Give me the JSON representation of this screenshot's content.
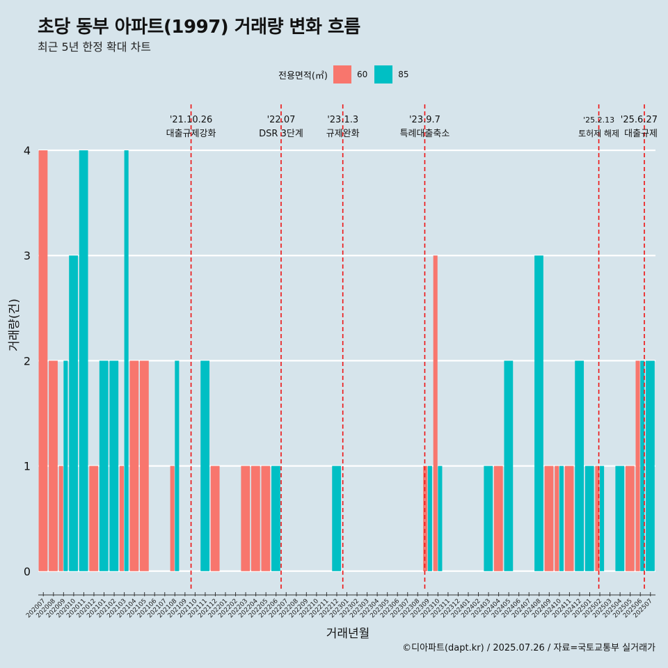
{
  "title": "초당 동부 아파트(1997) 거래량 변화 흐름",
  "subtitle": "최근 5년 한정 확대 차트",
  "legend": {
    "title": "전용면적(㎡)"
  },
  "caption": "©디아파트(dapt.kr) / 2025.07.26 / 자료=국토교통부 실거래가",
  "chart_data": {
    "type": "bar",
    "title": "초당 동부 아파트(1997) 거래량 변화 흐름",
    "xlabel": "거래년월",
    "ylabel": "거래량(건)",
    "ylim": [
      -0.18,
      4.45
    ],
    "yticks": [
      0,
      1,
      2,
      3,
      4
    ],
    "categories": [
      "202007",
      "202008",
      "202009",
      "202010",
      "202011",
      "202012",
      "202101",
      "202102",
      "202103",
      "202104",
      "202105",
      "202106",
      "202107",
      "202108",
      "202109",
      "202110",
      "202111",
      "202112",
      "202201",
      "202202",
      "202203",
      "202204",
      "202205",
      "202206",
      "202207",
      "202208",
      "202209",
      "202210",
      "202211",
      "202212",
      "202301",
      "202302",
      "202303",
      "202304",
      "202305",
      "202306",
      "202307",
      "202308",
      "202309",
      "202310",
      "202311",
      "202312",
      "202401",
      "202402",
      "202403",
      "202404",
      "202405",
      "202406",
      "202407",
      "202408",
      "202409",
      "202410",
      "202411",
      "202412",
      "202501",
      "202502",
      "202503",
      "202504",
      "202505",
      "202506",
      "202507"
    ],
    "series": [
      {
        "name": "60",
        "color": "#f8766d",
        "values": [
          4,
          2,
          1,
          0,
          0,
          1,
          0,
          0,
          1,
          2,
          2,
          0,
          0,
          1,
          0,
          0,
          0,
          1,
          0,
          0,
          1,
          1,
          1,
          0,
          0,
          0,
          0,
          0,
          0,
          0,
          0,
          0,
          0,
          0,
          0,
          0,
          0,
          0,
          1,
          3,
          0,
          0,
          0,
          0,
          0,
          1,
          0,
          0,
          0,
          0,
          1,
          1,
          1,
          0,
          0,
          1,
          0,
          0,
          1,
          2,
          0
        ]
      },
      {
        "name": "85",
        "color": "#00bfc4",
        "values": [
          0,
          0,
          2,
          3,
          4,
          0,
          2,
          2,
          4,
          0,
          0,
          0,
          0,
          2,
          0,
          0,
          2,
          0,
          0,
          0,
          0,
          0,
          0,
          1,
          0,
          0,
          0,
          0,
          0,
          1,
          0,
          0,
          0,
          0,
          0,
          0,
          0,
          0,
          1,
          1,
          0,
          0,
          0,
          0,
          1,
          0,
          2,
          0,
          0,
          3,
          0,
          1,
          0,
          2,
          1,
          1,
          0,
          1,
          0,
          2,
          2
        ]
      }
    ],
    "annotations": [
      {
        "month": "202110",
        "offset": 0.1,
        "date": "'21.10.26",
        "label": "대출규제강화"
      },
      {
        "month": "202207",
        "offset": 0.0,
        "date": "'22.07",
        "label": "DSR 3단계"
      },
      {
        "month": "202301",
        "offset": 0.1,
        "date": "'23.1.3",
        "label": "규제완화"
      },
      {
        "month": "202309",
        "offset": 0.2,
        "date": "'23.9.7",
        "label": "특례대출축소"
      },
      {
        "month": "202502",
        "offset": 0.4,
        "date": "'25.2.13",
        "label": "토허제 해제"
      },
      {
        "month": "202506",
        "offset": 0.9,
        "date": "'25.6.27",
        "label": "대출규제"
      }
    ]
  }
}
